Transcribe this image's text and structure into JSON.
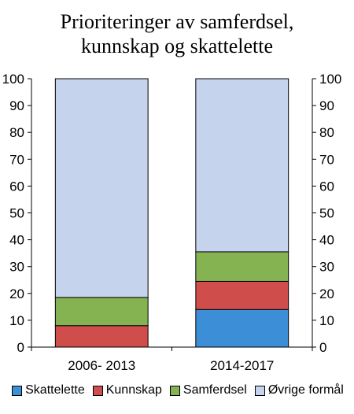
{
  "chart_data": {
    "type": "bar",
    "stacked": true,
    "title_lines": [
      "Prioriteringer av samferdsel,",
      "kunnskap og skattelette"
    ],
    "categories": [
      "2006- 2013",
      "2014-2017"
    ],
    "series": [
      {
        "name": "Skattelette",
        "color": "#3c8fd6",
        "values": [
          0,
          14
        ]
      },
      {
        "name": "Kunnskap",
        "color": "#cf4d4a",
        "values": [
          8,
          10.5
        ]
      },
      {
        "name": "Samferdsel",
        "color": "#86b352",
        "values": [
          10.5,
          11
        ]
      },
      {
        "name": "Øvrige formål",
        "color": "#c6d3ec",
        "values": [
          81.5,
          64.5
        ]
      }
    ],
    "ylim": [
      0,
      100
    ],
    "yticks": [
      0,
      10,
      20,
      30,
      40,
      50,
      60,
      70,
      80,
      90,
      100
    ],
    "secondary_y_axis": true,
    "grid": false,
    "legend_position": "bottom"
  }
}
